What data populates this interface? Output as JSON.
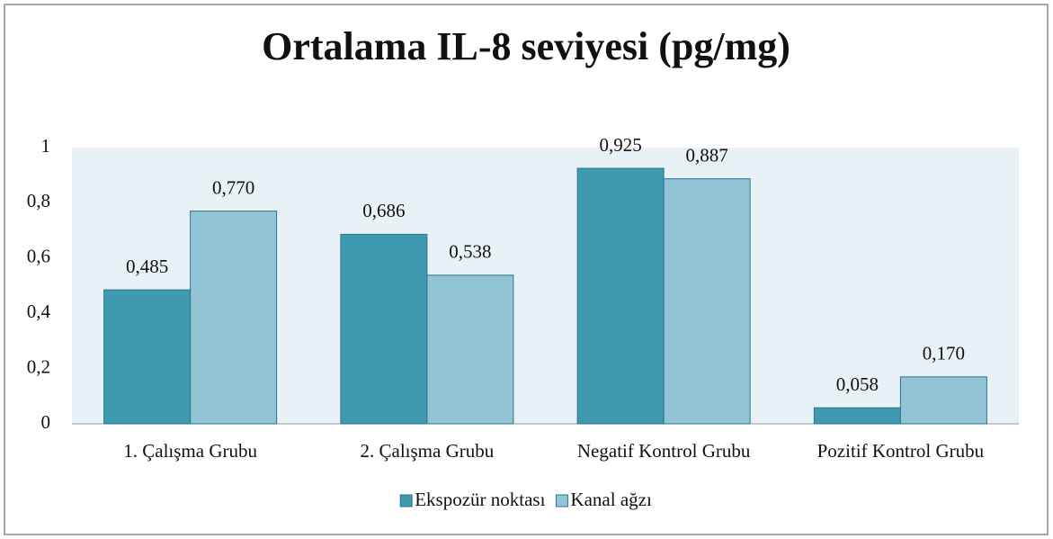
{
  "chart_data": {
    "type": "bar",
    "title": "Ortalama IL-8 seviyesi (pg/mg)",
    "categories": [
      "1. Çalışma Grubu",
      "2. Çalışma Grubu",
      "Negatif Kontrol Grubu",
      "Pozitif Kontrol Grubu"
    ],
    "series": [
      {
        "name": "Ekspozür noktası",
        "color": "#3f9ab1",
        "values": [
          0.485,
          0.686,
          0.925,
          0.058
        ],
        "value_labels": [
          "0,485",
          "0,686",
          "0,925",
          "0,058"
        ]
      },
      {
        "name": "Kanal ağzı",
        "color": "#93c4d6",
        "values": [
          0.77,
          0.538,
          0.887,
          0.17
        ],
        "value_labels": [
          "0,770",
          "0,538",
          "0,887",
          "0,170"
        ]
      }
    ],
    "ylim": [
      0,
      1
    ],
    "yticks": [
      0,
      {
        "value": 0.2,
        "label": "0,2"
      },
      {
        "value": 0.4,
        "label": "0,4"
      },
      {
        "value": 0.6,
        "label": "0,6"
      },
      {
        "value": 0.8,
        "label": "0,8"
      },
      1
    ],
    "legend": "bottom"
  }
}
